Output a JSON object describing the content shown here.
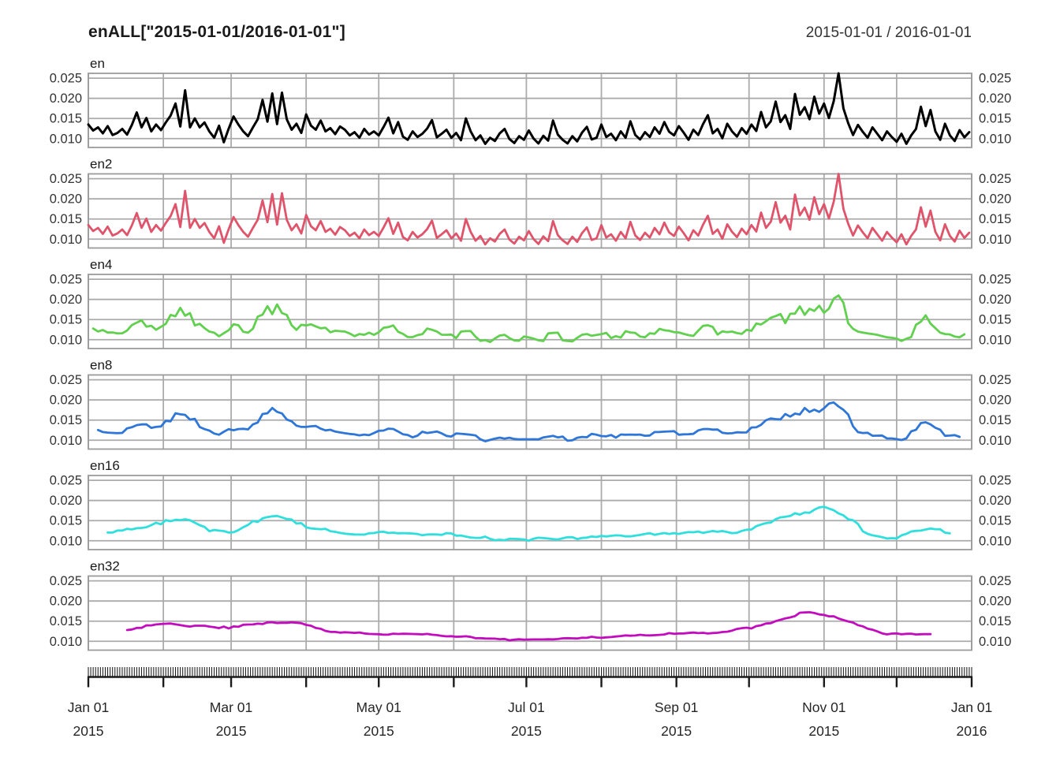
{
  "header": {
    "title": "enALL[\"2015-01-01/2016-01-01\"]",
    "range": "2015-01-01 / 2016-01-01"
  },
  "chart_data": {
    "type": "line",
    "title": "enALL[\"2015-01-01/2016-01-01\"]",
    "subtitle_right": "2015-01-01 / 2016-01-01",
    "layout": "6 stacked panels, shared x axis, grid on, y labels on both sides",
    "x_unit": "days since 2015-01-01, values sampled every 2 days",
    "x_start_day": 0,
    "x_step_days": 2,
    "x_domain_days": [
      0,
      365
    ],
    "y_domain": [
      0.0078,
      0.0262
    ],
    "y_ticks": [
      0.01,
      0.015,
      0.02,
      0.025
    ],
    "x_grid_months_days": [
      0,
      31,
      59,
      90,
      120,
      151,
      181,
      212,
      243,
      273,
      304,
      334,
      365
    ],
    "x_ticks": [
      {
        "day": 0,
        "line1": "Jan 01",
        "line2": "2015"
      },
      {
        "day": 59,
        "line1": "Mar 01",
        "line2": "2015"
      },
      {
        "day": 120,
        "line1": "May 01",
        "line2": "2015"
      },
      {
        "day": 181,
        "line1": "Jul 01",
        "line2": "2015"
      },
      {
        "day": 243,
        "line1": "Sep 01",
        "line2": "2015"
      },
      {
        "day": 304,
        "line1": "Nov 01",
        "line2": "2015"
      },
      {
        "day": 365,
        "line1": "Jan 01",
        "line2": "2016"
      }
    ],
    "grid_color": "#ababab",
    "border_color": "#9b9b9b",
    "axis_color": "#1a1a1a",
    "text_color": "#333333",
    "panels": [
      {
        "label": "en",
        "color": "#000000",
        "smooth_window_days": 1,
        "box_points": 1
      },
      {
        "label": "en2",
        "color": "#DF536B",
        "smooth_window_days": 2,
        "box_points": 1
      },
      {
        "label": "en4",
        "color": "#61D04F",
        "smooth_window_days": 4,
        "box_points": 3
      },
      {
        "label": "en8",
        "color": "#2E76D8",
        "smooth_window_days": 8,
        "box_points": 5
      },
      {
        "label": "en16",
        "color": "#2FDFDD",
        "smooth_window_days": 16,
        "box_points": 9
      },
      {
        "label": "en32",
        "color": "#C20CBE",
        "smooth_window_days": 32,
        "box_points": 17
      }
    ],
    "series_note": "values_en is the base daily-entropy series (sampled every 2 days); panels en2..en32 are centered rolling means of it over smooth_window_days, so their lines start/end half a window inside the x range",
    "values_en": [
      0.0135,
      0.012,
      0.0128,
      0.0113,
      0.0131,
      0.0109,
      0.0114,
      0.0124,
      0.011,
      0.0134,
      0.0165,
      0.0128,
      0.0151,
      0.0118,
      0.0135,
      0.0121,
      0.014,
      0.0157,
      0.0187,
      0.013,
      0.022,
      0.0128,
      0.015,
      0.0128,
      0.014,
      0.0118,
      0.0102,
      0.0132,
      0.0091,
      0.0125,
      0.0155,
      0.0135,
      0.0118,
      0.0106,
      0.0128,
      0.0148,
      0.0196,
      0.0142,
      0.0212,
      0.0136,
      0.0214,
      0.0148,
      0.0122,
      0.0137,
      0.0114,
      0.016,
      0.0132,
      0.0122,
      0.0145,
      0.0118,
      0.0126,
      0.0111,
      0.013,
      0.0122,
      0.0108,
      0.0116,
      0.0102,
      0.0124,
      0.011,
      0.0118,
      0.0108,
      0.0129,
      0.0152,
      0.0113,
      0.0141,
      0.0105,
      0.0097,
      0.0118,
      0.0104,
      0.0112,
      0.0125,
      0.0146,
      0.0103,
      0.0112,
      0.0122,
      0.0102,
      0.0114,
      0.0096,
      0.015,
      0.0118,
      0.0096,
      0.0108,
      0.0087,
      0.0102,
      0.0094,
      0.0113,
      0.0124,
      0.0099,
      0.0089,
      0.0106,
      0.0097,
      0.012,
      0.01,
      0.0088,
      0.0107,
      0.0095,
      0.0145,
      0.011,
      0.0097,
      0.0088,
      0.0106,
      0.0093,
      0.0115,
      0.0129,
      0.0098,
      0.0102,
      0.0135,
      0.0104,
      0.0112,
      0.0096,
      0.0118,
      0.0102,
      0.0143,
      0.0109,
      0.0098,
      0.0116,
      0.0104,
      0.0128,
      0.0112,
      0.0141,
      0.0117,
      0.0108,
      0.0131,
      0.0115,
      0.0097,
      0.0122,
      0.0109,
      0.0136,
      0.0158,
      0.0113,
      0.0124,
      0.0101,
      0.0137,
      0.0118,
      0.0105,
      0.0126,
      0.0112,
      0.0135,
      0.0119,
      0.0166,
      0.0128,
      0.0143,
      0.0192,
      0.0141,
      0.0158,
      0.0124,
      0.0211,
      0.0159,
      0.0178,
      0.0148,
      0.0204,
      0.0162,
      0.0187,
      0.0151,
      0.0193,
      0.0262,
      0.0175,
      0.0138,
      0.0109,
      0.0134,
      0.0117,
      0.0102,
      0.0128,
      0.0112,
      0.0096,
      0.0118,
      0.0104,
      0.0092,
      0.0112,
      0.0087,
      0.0108,
      0.0124,
      0.0179,
      0.0131,
      0.0171,
      0.0118,
      0.0097,
      0.0137,
      0.0108,
      0.0094,
      0.0121,
      0.0103,
      0.0116
    ]
  }
}
